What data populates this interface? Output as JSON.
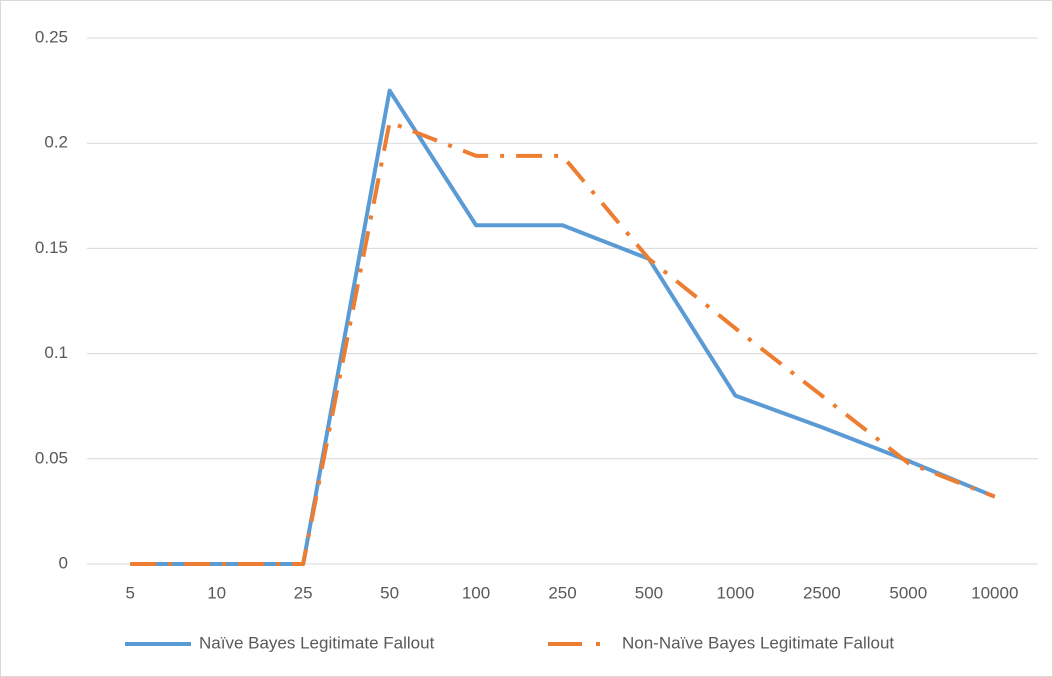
{
  "chart_data": {
    "type": "line",
    "categories": [
      "5",
      "10",
      "25",
      "50",
      "100",
      "250",
      "500",
      "1000",
      "2500",
      "5000",
      "10000"
    ],
    "series": [
      {
        "name": "Naïve Bayes Legitimate Fallout",
        "color": "#5b9bd5",
        "line_style": "solid",
        "values": [
          0,
          0,
          0,
          0.225,
          0.161,
          0.161,
          0.145,
          0.08,
          0.065,
          0.049,
          0.032
        ]
      },
      {
        "name": "Non-Naïve Bayes Legitimate Fallout",
        "color": "#ed7d31",
        "line_style": "dash-dot",
        "values": [
          0,
          0,
          0,
          0.21,
          0.194,
          0.194,
          0.145,
          0.112,
          0.08,
          0.048,
          0.032
        ]
      }
    ],
    "ylim": [
      0,
      0.25
    ],
    "yticks": [
      0,
      0.05,
      0.1,
      0.15,
      0.2,
      0.25
    ],
    "grid": true,
    "legend": "bottom"
  }
}
